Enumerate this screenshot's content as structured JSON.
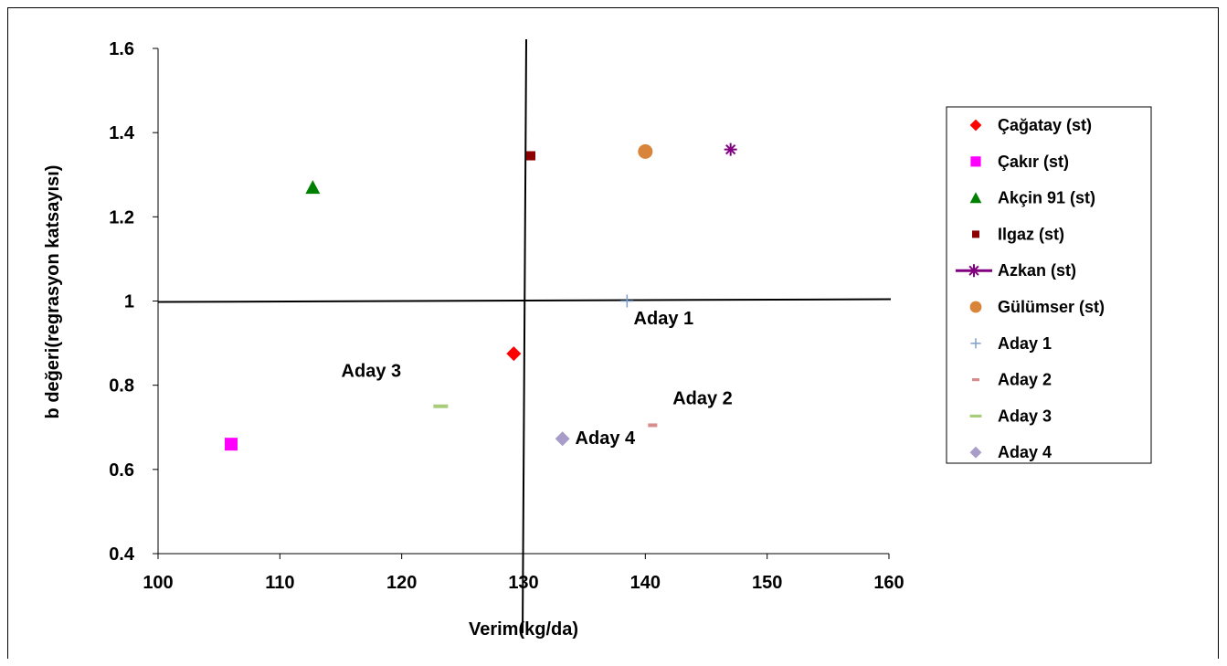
{
  "chart_data": {
    "type": "scatter",
    "title": "",
    "xlabel": "Verim(kg/da)",
    "ylabel": "b değeri(regrasyon katsayısı)",
    "xlim": [
      100,
      160
    ],
    "ylim": [
      0.4,
      1.6
    ],
    "x_ticks": [
      "100",
      "110",
      "120",
      "130",
      "140",
      "150",
      "160"
    ],
    "y_ticks": [
      "0.4",
      "0.6",
      "0.8",
      "1",
      "1.2",
      "1.4",
      "1.6"
    ],
    "legend_position": "right",
    "grid": false,
    "reference_lines": {
      "x": 130,
      "y": 1
    },
    "series": [
      {
        "name": "Çağatay (st)",
        "marker": "diamond",
        "color": "#ff0000",
        "points": [
          [
            129.2,
            0.875
          ]
        ]
      },
      {
        "name": "Çakır (st)",
        "marker": "square",
        "color": "#ff00ff",
        "points": [
          [
            106.0,
            0.66
          ]
        ]
      },
      {
        "name": "Akçin 91 (st)",
        "marker": "triangle",
        "color": "#008000",
        "points": [
          [
            112.7,
            1.27
          ]
        ]
      },
      {
        "name": "Ilgaz (st)",
        "marker": "square-small",
        "color": "#8b0000",
        "points": [
          [
            130.6,
            1.345
          ]
        ]
      },
      {
        "name": "Azkan (st)",
        "marker": "star",
        "color": "#800080",
        "points": [
          [
            147.0,
            1.36
          ]
        ]
      },
      {
        "name": "Gülümser (st)",
        "marker": "circle",
        "color": "#d9843b",
        "points": [
          [
            140.0,
            1.355
          ]
        ]
      },
      {
        "name": "Aday 1",
        "marker": "plus",
        "color": "#7f9fcf",
        "points": [
          [
            138.5,
            1.0
          ]
        ]
      },
      {
        "name": "Aday 2",
        "marker": "dash-small",
        "color": "#d98c8c",
        "points": [
          [
            140.6,
            0.705
          ]
        ]
      },
      {
        "name": "Aday 3",
        "marker": "dash",
        "color": "#a8cc7a",
        "points": [
          [
            123.2,
            0.75
          ]
        ]
      },
      {
        "name": "Aday 4",
        "marker": "diamond",
        "color": "#a89cc8",
        "points": [
          [
            133.2,
            0.673
          ]
        ]
      }
    ],
    "annotations": [
      {
        "text": "Aday 1",
        "x": 141.5,
        "y": 0.945
      },
      {
        "text": "Aday 2",
        "x": 144.7,
        "y": 0.755
      },
      {
        "text": "Aday 3",
        "x": 117.5,
        "y": 0.82
      },
      {
        "text": "Aday 4",
        "x": 136.7,
        "y": 0.66
      }
    ]
  }
}
